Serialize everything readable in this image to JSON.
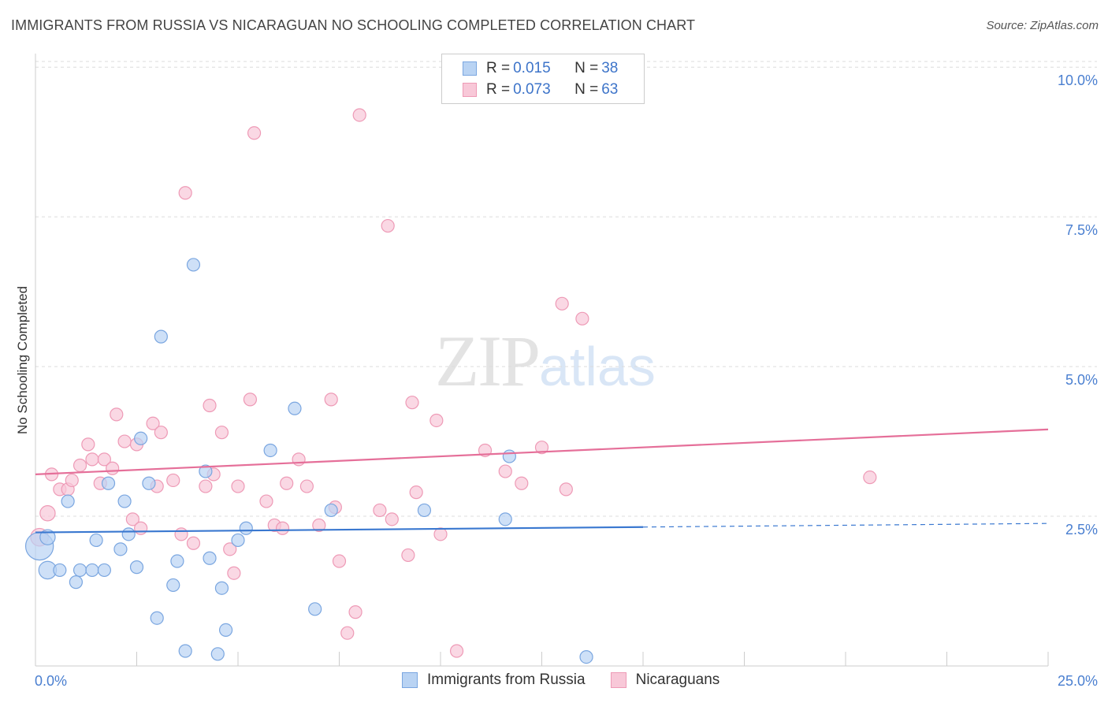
{
  "header": {
    "title": "IMMIGRANTS FROM RUSSIA VS NICARAGUAN NO SCHOOLING COMPLETED CORRELATION CHART",
    "source": "Source: ZipAtlas.com"
  },
  "watermark": {
    "zip": "ZIP",
    "atlas": "atlas"
  },
  "legend": {
    "rows": [
      {
        "r_label": "R = ",
        "r_value": "0.015",
        "n_label": "N = ",
        "n_value": "38"
      },
      {
        "r_label": "R = ",
        "r_value": "0.073",
        "n_label": "N = ",
        "n_value": "63"
      }
    ]
  },
  "bottom_legend": {
    "items": [
      {
        "label": "Immigrants from Russia"
      },
      {
        "label": "Nicaraguans"
      }
    ]
  },
  "colors": {
    "russia_fill": "#b9d3f3",
    "russia_stroke": "#7aa6e0",
    "russia_line": "#3a78d0",
    "nicaraguan_fill": "#f8c8d8",
    "nicaraguan_stroke": "#ee9ab6",
    "nicaraguan_line": "#e56f99",
    "tick_label": "#4a7fd0",
    "grid": "#dcdcdc"
  },
  "chart_data": {
    "type": "scatter",
    "title": "IMMIGRANTS FROM RUSSIA VS NICARAGUAN NO SCHOOLING COMPLETED CORRELATION CHART",
    "xlabel": "",
    "ylabel": "No Schooling Completed",
    "xlim": [
      0,
      25
    ],
    "ylim": [
      0,
      10.2
    ],
    "x_tick_labels": [
      "0.0%",
      "25.0%"
    ],
    "y_ticks": [
      2.5,
      5.0,
      7.5,
      10.0
    ],
    "y_tick_labels": [
      "2.5%",
      "5.0%",
      "7.5%",
      "10.0%"
    ],
    "grid": true,
    "legend_position": "top-center",
    "series": [
      {
        "name": "Immigrants from Russia",
        "r": 0.015,
        "n": 38,
        "trend": {
          "x0": 0,
          "y0": 2.23,
          "x1": 15,
          "y1": 2.32,
          "dashed_to_x": 25,
          "dashed_to_y": 2.38
        },
        "points": [
          [
            0.1,
            2.0,
            22
          ],
          [
            0.3,
            2.15,
            12
          ],
          [
            0.3,
            1.6,
            14
          ],
          [
            0.6,
            1.6,
            10
          ],
          [
            0.8,
            2.75,
            10
          ],
          [
            1.0,
            1.4,
            10
          ],
          [
            1.1,
            1.6,
            10
          ],
          [
            1.4,
            1.6,
            10
          ],
          [
            1.5,
            2.1,
            10
          ],
          [
            1.7,
            1.6,
            10
          ],
          [
            1.8,
            3.05,
            10
          ],
          [
            2.1,
            1.95,
            10
          ],
          [
            2.2,
            2.75,
            10
          ],
          [
            2.3,
            2.2,
            10
          ],
          [
            2.5,
            1.65,
            10
          ],
          [
            2.6,
            3.8,
            10
          ],
          [
            2.8,
            3.05,
            10
          ],
          [
            3.0,
            0.8,
            10
          ],
          [
            3.1,
            5.5,
            10
          ],
          [
            3.4,
            1.35,
            10
          ],
          [
            3.5,
            1.75,
            10
          ],
          [
            3.7,
            0.25,
            10
          ],
          [
            3.9,
            6.7,
            10
          ],
          [
            4.2,
            3.25,
            10
          ],
          [
            4.3,
            1.8,
            10
          ],
          [
            4.5,
            0.2,
            10
          ],
          [
            4.6,
            1.3,
            10
          ],
          [
            4.7,
            0.6,
            10
          ],
          [
            5.0,
            2.1,
            10
          ],
          [
            5.2,
            2.3,
            10
          ],
          [
            5.8,
            3.6,
            10
          ],
          [
            6.4,
            4.3,
            10
          ],
          [
            6.9,
            0.95,
            10
          ],
          [
            7.3,
            2.6,
            10
          ],
          [
            9.6,
            2.6,
            10
          ],
          [
            11.6,
            2.45,
            10
          ],
          [
            11.7,
            3.5,
            10
          ],
          [
            13.6,
            0.15,
            10
          ]
        ]
      },
      {
        "name": "Nicaraguans",
        "r": 0.073,
        "n": 63,
        "trend": {
          "x0": 0,
          "y0": 3.2,
          "x1": 25,
          "y1": 3.95
        },
        "points": [
          [
            0.1,
            2.15,
            14
          ],
          [
            0.3,
            2.55,
            12
          ],
          [
            0.4,
            3.2,
            10
          ],
          [
            0.6,
            2.95,
            10
          ],
          [
            0.8,
            2.95,
            10
          ],
          [
            0.9,
            3.1,
            10
          ],
          [
            1.1,
            3.35,
            10
          ],
          [
            1.3,
            3.7,
            10
          ],
          [
            1.4,
            3.45,
            10
          ],
          [
            1.6,
            3.05,
            10
          ],
          [
            1.7,
            3.45,
            10
          ],
          [
            1.9,
            3.3,
            10
          ],
          [
            2.0,
            4.2,
            10
          ],
          [
            2.2,
            3.75,
            10
          ],
          [
            2.4,
            2.45,
            10
          ],
          [
            2.5,
            3.7,
            10
          ],
          [
            2.6,
            2.3,
            10
          ],
          [
            2.9,
            4.05,
            10
          ],
          [
            3.0,
            3.0,
            10
          ],
          [
            3.1,
            3.9,
            10
          ],
          [
            3.4,
            3.1,
            10
          ],
          [
            3.6,
            2.2,
            10
          ],
          [
            3.7,
            7.9,
            10
          ],
          [
            3.9,
            2.05,
            10
          ],
          [
            4.2,
            3.0,
            10
          ],
          [
            4.3,
            4.35,
            10
          ],
          [
            4.4,
            3.2,
            10
          ],
          [
            4.6,
            3.9,
            10
          ],
          [
            4.8,
            1.95,
            10
          ],
          [
            4.9,
            1.55,
            10
          ],
          [
            5.0,
            3.0,
            10
          ],
          [
            5.3,
            4.45,
            10
          ],
          [
            5.4,
            8.9,
            10
          ],
          [
            5.7,
            2.75,
            10
          ],
          [
            5.9,
            2.35,
            10
          ],
          [
            6.1,
            2.3,
            10
          ],
          [
            6.2,
            3.05,
            10
          ],
          [
            6.5,
            3.45,
            10
          ],
          [
            6.7,
            3.0,
            10
          ],
          [
            7.0,
            2.35,
            10
          ],
          [
            7.3,
            4.45,
            10
          ],
          [
            7.4,
            2.65,
            10
          ],
          [
            7.5,
            1.75,
            10
          ],
          [
            7.7,
            0.55,
            10
          ],
          [
            7.9,
            0.9,
            10
          ],
          [
            8.0,
            9.2,
            10
          ],
          [
            8.5,
            2.6,
            10
          ],
          [
            8.7,
            7.35,
            10
          ],
          [
            8.8,
            2.45,
            10
          ],
          [
            9.2,
            1.85,
            10
          ],
          [
            9.3,
            4.4,
            10
          ],
          [
            9.4,
            2.9,
            10
          ],
          [
            9.9,
            4.1,
            10
          ],
          [
            10.0,
            2.2,
            10
          ],
          [
            10.4,
            0.25,
            10
          ],
          [
            11.1,
            3.6,
            10
          ],
          [
            11.6,
            3.25,
            10
          ],
          [
            12.0,
            3.05,
            10
          ],
          [
            12.5,
            3.65,
            10
          ],
          [
            13.0,
            6.05,
            10
          ],
          [
            13.1,
            2.95,
            10
          ],
          [
            13.5,
            5.8,
            10
          ],
          [
            20.6,
            3.15,
            10
          ]
        ]
      }
    ]
  }
}
